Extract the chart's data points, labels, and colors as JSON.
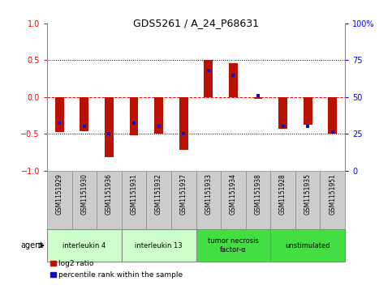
{
  "title": "GDS5261 / A_24_P68631",
  "samples": [
    "GSM1151929",
    "GSM1151930",
    "GSM1151936",
    "GSM1151931",
    "GSM1151932",
    "GSM1151937",
    "GSM1151933",
    "GSM1151934",
    "GSM1151938",
    "GSM1151928",
    "GSM1151935",
    "GSM1151951"
  ],
  "log2_ratio": [
    -0.48,
    -0.47,
    -0.82,
    -0.52,
    -0.5,
    -0.72,
    0.5,
    0.46,
    -0.02,
    -0.43,
    -0.38,
    -0.5
  ],
  "percentile": [
    32,
    30,
    25,
    32,
    30,
    25,
    68,
    65,
    51,
    30,
    30,
    26
  ],
  "agents": [
    {
      "label": "interleukin 4",
      "start": 0,
      "end": 3,
      "color": "#ccffcc"
    },
    {
      "label": "interleukin 13",
      "start": 3,
      "end": 6,
      "color": "#ccffcc"
    },
    {
      "label": "tumor necrosis\nfactor-α",
      "start": 6,
      "end": 9,
      "color": "#44dd44"
    },
    {
      "label": "unstimulated",
      "start": 9,
      "end": 12,
      "color": "#44dd44"
    }
  ],
  "bar_color": "#bb1100",
  "dot_color": "#1111bb",
  "ylim": [
    -1.0,
    1.0
  ],
  "y_left_ticks": [
    -1,
    -0.5,
    0,
    0.5,
    1
  ],
  "y_right_ticks": [
    0,
    25,
    50,
    75,
    100
  ],
  "bar_width": 0.35,
  "dot_size": 12,
  "legend_red_label": "log2 ratio",
  "legend_blue_label": "percentile rank within the sample",
  "agent_label": "agent",
  "sample_box_color": "#cccccc",
  "spine_color": "#888888"
}
